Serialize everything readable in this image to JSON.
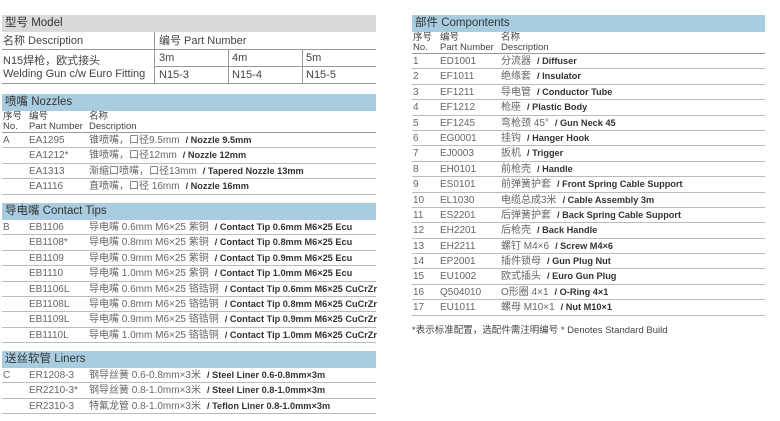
{
  "model": {
    "title": "型号 Model",
    "desc_label": "名称  Description",
    "pn_label": "编号 Part Number",
    "name_cn": "N15焊枪，欧式接头",
    "name_en": "Welding Gun c/w  Euro Fitting",
    "lengths": [
      "3m",
      "4m",
      "5m"
    ],
    "parts": [
      "N15-3",
      "N15-4",
      "N15-5"
    ]
  },
  "labels": {
    "no_cn": "序号",
    "no_en": "No.",
    "pn_cn": "编号",
    "pn_en": "Part  Number",
    "desc_cn": "名称",
    "desc_en": "Description"
  },
  "nozzles": {
    "title": "喷嘴 Nozzles",
    "rows": [
      {
        "no": "A",
        "pn": "EA1295",
        "cn": "锥喷嘴，口径9.5mm",
        "en": "/ Nozzle 9.5mm"
      },
      {
        "no": "",
        "pn": "EA1212*",
        "cn": "锥喷嘴，口径12mm",
        "en": "/ Nozzle 12mm"
      },
      {
        "no": "",
        "pn": "EA1313",
        "cn": "渐缩口喷嘴，口径13mm",
        "en": "/ Tapered Nozzle 13mm"
      },
      {
        "no": "",
        "pn": "EA1116",
        "cn": "直喷嘴，口径 16mm",
        "en": "/ Nozzle 16mm"
      }
    ]
  },
  "tips": {
    "title": "导电嘴 Contact Tips",
    "rows": [
      {
        "no": "B",
        "pn": "EB1106",
        "cn": "导电嘴 0.6mm M6×25  紫铜",
        "en": "/ Contact Tip 0.6mm M6×25 Ecu"
      },
      {
        "no": "",
        "pn": "EB1108*",
        "cn": "导电嘴 0.8mm M6×25  紫铜",
        "en": "/ Contact Tip 0.8mm M6×25 Ecu"
      },
      {
        "no": "",
        "pn": "EB1109",
        "cn": "导电嘴 0.9mm M6×25  紫铜",
        "en": "/ Contact Tip 0.9mm M6×25 Ecu"
      },
      {
        "no": "",
        "pn": "EB1110",
        "cn": "导电嘴 1.0mm M6×25  紫铜",
        "en": "/ Contact Tip 1.0mm M6×25 Ecu"
      },
      {
        "no": "",
        "pn": "EB1106L",
        "cn": "导电嘴 0.6mm M6×25  铬锆铜",
        "en": "/ Contact Tip 0.6mm M6×25 CuCrZr"
      },
      {
        "no": "",
        "pn": "EB1108L",
        "cn": "导电嘴 0.8mm M6×25  铬锆铜",
        "en": "/ Contact Tip 0.8mm M6×25 CuCrZr"
      },
      {
        "no": "",
        "pn": "EB1109L",
        "cn": "导电嘴 0.9mm M6×25  铬锆铜",
        "en": "/ Contact Tip 0.9mm M6×25 CuCrZr"
      },
      {
        "no": "",
        "pn": "EB1110L",
        "cn": "导电嘴 1.0mm M6×25  铬锆铜",
        "en": "/ Contact Tip 1.0mm M6×25 CuCrZr"
      }
    ]
  },
  "liners": {
    "title": "送丝软管 Liners",
    "rows": [
      {
        "no": "C",
        "pn": "ER1208-3",
        "cn": "钢导丝簧 0.6-0.8mm×3米",
        "en": "/ Steel Liner  0.6-0.8mm×3m"
      },
      {
        "no": "",
        "pn": "ER2210-3*",
        "cn": "钢导丝簧 0.8-1.0mm×3米",
        "en": "/ Steel Liner  0.8-1.0mm×3m"
      },
      {
        "no": "",
        "pn": "ER2310-3",
        "cn": "特氟龙管 0.8-1.0mm×3米",
        "en": "/ Teflon Liner  0.8-1.0mm×3m"
      }
    ]
  },
  "components": {
    "title": "部件  Compontents",
    "rows": [
      {
        "no": "1",
        "pn": "ED1001",
        "cn": "分流器",
        "en": "/ Diffuser"
      },
      {
        "no": "2",
        "pn": "EF1011",
        "cn": "绝缘套",
        "en": "/ Insulator"
      },
      {
        "no": "3",
        "pn": "EF1211",
        "cn": "导电管",
        "en": "/ Conductor Tube"
      },
      {
        "no": "4",
        "pn": "EF1212",
        "cn": "枪座",
        "en": "/ Plastic Body"
      },
      {
        "no": "5",
        "pn": "EF1245",
        "cn": "弯枪颈 45°",
        "en": "/ Gun Neck 45"
      },
      {
        "no": "6",
        "pn": "EG0001",
        "cn": "挂钩",
        "en": "/ Hanger Hook"
      },
      {
        "no": "7",
        "pn": "EJ0003",
        "cn": "扳机",
        "en": "/ Trigger"
      },
      {
        "no": "8",
        "pn": "EH0101",
        "cn": "前枪壳",
        "en": "/ Handle"
      },
      {
        "no": "9",
        "pn": "ES0101",
        "cn": "前弹簧护套",
        "en": "/ Front Spring Cable Support"
      },
      {
        "no": "10",
        "pn": "EL1030",
        "cn": "电缆总成3米",
        "en": "/ Cable Assembly 3m"
      },
      {
        "no": "11",
        "pn": "ES2201",
        "cn": "后弹簧护套",
        "en": "/ Back Spring Cable Support"
      },
      {
        "no": "12",
        "pn": "EH2201",
        "cn": "后枪壳",
        "en": "/ Back Handle"
      },
      {
        "no": "13",
        "pn": "EH2211",
        "cn": "螺钉  M4×6",
        "en": "/ Screw M4×6"
      },
      {
        "no": "14",
        "pn": "EP2001",
        "cn": "插件锁母",
        "en": "/ Gun Plug Nut"
      },
      {
        "no": "15",
        "pn": "EU1002",
        "cn": "欧式插头",
        "en": "/ Euro Gun Plug"
      },
      {
        "no": "16",
        "pn": "Q504010",
        "cn": "O形圈  4×1",
        "en": "/ O-Ring 4×1"
      },
      {
        "no": "17",
        "pn": "EU1011",
        "cn": "螺母  M10×1",
        "en": "/ Nut M10×1"
      }
    ]
  },
  "footnote": "*表示标准配置，选配件需注明编号    * Denotes Standard Build"
}
